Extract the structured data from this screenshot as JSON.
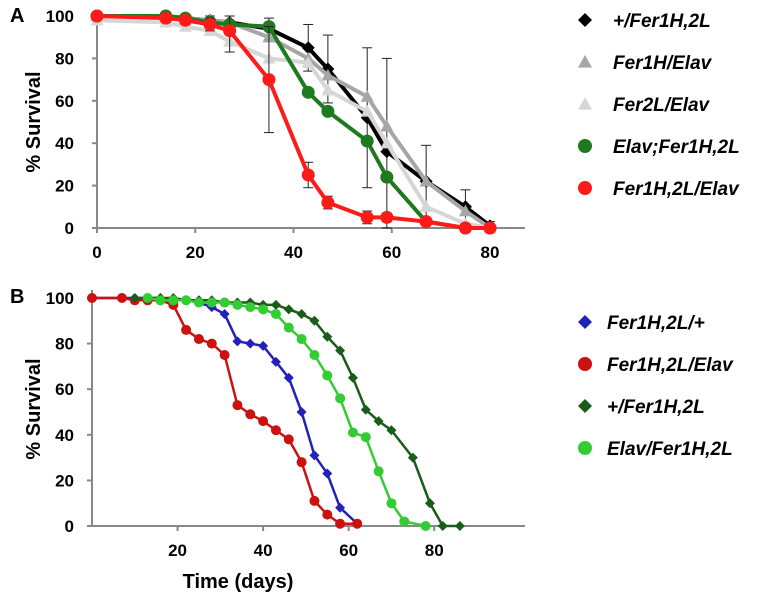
{
  "chart_data": [
    {
      "panel": "A",
      "type": "line",
      "xlabel": "",
      "ylabel": "% Survival",
      "xlim": [
        0,
        80
      ],
      "ylim": [
        0,
        100
      ],
      "xticks": [
        "0",
        "20",
        "40",
        "60",
        "80"
      ],
      "yticks": [
        "0",
        "20",
        "40",
        "60",
        "80",
        "100"
      ],
      "grid": false,
      "legend_position": "right",
      "series": [
        {
          "name": "+/Fer1H,2L",
          "color": "#000000",
          "marker": "diamond",
          "x": [
            0,
            14,
            18,
            23,
            27,
            35,
            43,
            47,
            55,
            59,
            67,
            75,
            80
          ],
          "y": [
            100,
            100,
            99,
            98,
            97,
            94,
            85,
            75,
            52,
            36,
            22,
            10,
            1
          ],
          "err": [
            0,
            0,
            0,
            2,
            3,
            5,
            11,
            16,
            33,
            44,
            17,
            8,
            2
          ]
        },
        {
          "name": "Fer1H/Elav",
          "color": "#a6a6a6",
          "marker": "triangle",
          "x": [
            0,
            14,
            18,
            23,
            27,
            35,
            43,
            47,
            55,
            59,
            67,
            75,
            80
          ],
          "y": [
            100,
            100,
            99,
            98,
            97,
            90,
            80,
            72,
            62,
            48,
            22,
            8,
            0
          ],
          "err": []
        },
        {
          "name": "Fer2L/Elav",
          "color": "#d6d6d6",
          "marker": "triangle",
          "x": [
            0,
            14,
            18,
            23,
            27,
            35,
            43,
            47,
            55,
            59,
            67,
            75,
            80
          ],
          "y": [
            98,
            97,
            95,
            93,
            88,
            80,
            78,
            65,
            55,
            40,
            10,
            2,
            0
          ],
          "err": []
        },
        {
          "name": "Elav;Fer1H,2L",
          "color": "#1f7a1f",
          "marker": "circle",
          "x": [
            0,
            14,
            18,
            23,
            27,
            35,
            43,
            47,
            55,
            59,
            67,
            75,
            80
          ],
          "y": [
            100,
            100,
            99,
            97,
            96,
            95,
            64,
            55,
            41,
            24,
            3,
            0,
            0
          ],
          "err": []
        },
        {
          "name": "Fer1H,2L/Elav",
          "color": "#ff1a1a",
          "marker": "circle",
          "x": [
            0,
            14,
            18,
            23,
            27,
            35,
            43,
            47,
            55,
            59,
            67,
            75,
            80
          ],
          "y": [
            100,
            99,
            98,
            96,
            93,
            70,
            25,
            12,
            5,
            5,
            3,
            0,
            0
          ],
          "err": [
            0,
            2,
            2,
            3,
            10,
            25,
            6,
            3,
            3,
            2,
            1,
            0,
            0
          ]
        }
      ]
    },
    {
      "panel": "B",
      "type": "line",
      "xlabel": "Time (days)",
      "ylabel": "% Survival",
      "xlim": [
        0,
        90
      ],
      "ylim": [
        0,
        100
      ],
      "xticks": [
        "20",
        "40",
        "60",
        "80"
      ],
      "yticks": [
        "0",
        "20",
        "40",
        "60",
        "80",
        "100"
      ],
      "grid": false,
      "legend_position": "right",
      "series": [
        {
          "name": "Fer1H,2L/+",
          "color": "#2222bb",
          "marker": "diamond",
          "x": [
            0,
            7,
            10,
            13,
            16,
            19,
            22,
            25,
            28,
            31,
            34,
            37,
            40,
            43,
            46,
            49,
            52,
            55,
            58,
            62
          ],
          "y": [
            100,
            100,
            100,
            100,
            100,
            99,
            99,
            98,
            96,
            93,
            81,
            80,
            79,
            72,
            65,
            50,
            31,
            23,
            8,
            1
          ],
          "err": []
        },
        {
          "name": "Fer1H,2L/Elav",
          "color": "#cc1111",
          "marker": "circle",
          "x": [
            0,
            7,
            10,
            13,
            16,
            19,
            22,
            25,
            28,
            31,
            34,
            37,
            40,
            43,
            46,
            49,
            52,
            55,
            58,
            62
          ],
          "y": [
            100,
            100,
            99,
            99,
            99,
            97,
            86,
            82,
            80,
            75,
            53,
            49,
            46,
            42,
            38,
            28,
            11,
            5,
            1,
            1
          ],
          "err": []
        },
        {
          "name": "+/Fer1H,2L",
          "color": "#1a5c1a",
          "marker": "diamond",
          "x": [
            10,
            13,
            16,
            19,
            22,
            25,
            28,
            31,
            34,
            37,
            40,
            43,
            46,
            49,
            52,
            55,
            58,
            61,
            64,
            67,
            70,
            75,
            79,
            82,
            86
          ],
          "y": [
            100,
            100,
            100,
            100,
            99,
            99,
            99,
            98,
            98,
            98,
            97,
            97,
            95,
            93,
            90,
            83,
            77,
            65,
            51,
            46,
            42,
            30,
            10,
            0,
            0
          ],
          "err": []
        },
        {
          "name": "Elav/Fer1H,2L",
          "color": "#33cc33",
          "marker": "circle",
          "x": [
            13,
            16,
            19,
            22,
            25,
            28,
            31,
            34,
            37,
            40,
            43,
            46,
            49,
            52,
            55,
            58,
            61,
            64,
            67,
            70,
            73,
            78
          ],
          "y": [
            100,
            99,
            99,
            99,
            98,
            98,
            98,
            97,
            96,
            95,
            93,
            87,
            82,
            75,
            66,
            56,
            41,
            39,
            24,
            10,
            2,
            0
          ],
          "err": []
        }
      ]
    }
  ]
}
